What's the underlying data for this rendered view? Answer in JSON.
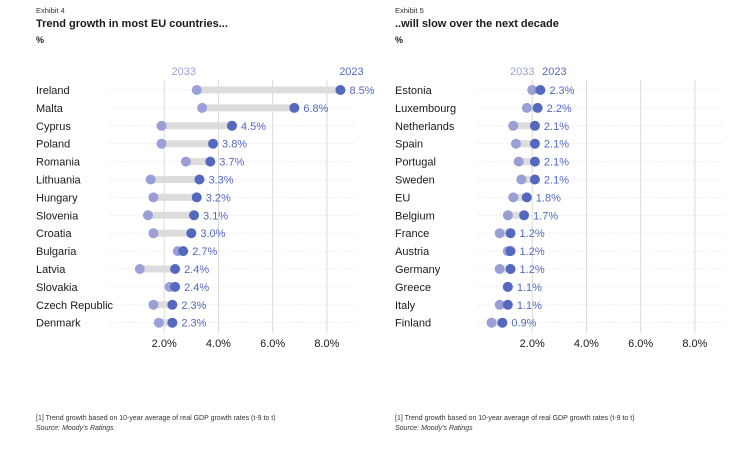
{
  "left": {
    "exhibit": "Exhibit 4",
    "title": "Trend growth in most EU countries...",
    "unit": "%",
    "footnote": "[1] Trend growth based on 10-year average of real GDP growth rates (t-9 to t)",
    "source": "Source: Moody’s Ratings"
  },
  "right": {
    "exhibit": "Exhibit 5",
    "title": "..will slow over the next decade",
    "unit": "%",
    "footnote": "[1] Trend growth based on 10-year average of real GDP growth rates (t-9 to t)",
    "source": "Source: Moody’s Ratings"
  },
  "colors": {
    "series_2023": "#5468c0",
    "series_2033": "#9a9fd6",
    "connector": "#dcdcdc",
    "grid": "#d9d9d9"
  },
  "chart_data": [
    {
      "type": "dumbbell",
      "title": "Trend growth in most EU countries...",
      "ylabel": "%",
      "xlim": [
        0,
        0.09
      ],
      "xticks": [
        0.02,
        0.04,
        0.06,
        0.08
      ],
      "xtick_labels": [
        "2.0%",
        "4.0%",
        "6.0%",
        "8.0%"
      ],
      "grid": true,
      "series": [
        {
          "name": "2023",
          "values": [
            0.085,
            0.068,
            0.045,
            0.038,
            0.037,
            0.033,
            0.032,
            0.031,
            0.03,
            0.027,
            0.024,
            0.024,
            0.023,
            0.023
          ],
          "labels": [
            "8.5%",
            "6.8%",
            "4.5%",
            "3.8%",
            "3.7%",
            "3.3%",
            "3.2%",
            "3.1%",
            "3.0%",
            "2.7%",
            "2.4%",
            "2.4%",
            "2.3%",
            "2.3%"
          ]
        },
        {
          "name": "2033",
          "values": [
            0.032,
            0.034,
            0.019,
            0.019,
            0.028,
            0.015,
            0.016,
            0.014,
            0.016,
            0.025,
            0.011,
            0.022,
            0.016,
            0.018
          ]
        }
      ],
      "categories": [
        "Ireland",
        "Malta",
        "Cyprus",
        "Poland",
        "Romania",
        "Lithuania",
        "Hungary",
        "Slovenia",
        "Croatia",
        "Bulgaria",
        "Latvia",
        "Slovakia",
        "Czech Republic",
        "Denmark"
      ]
    },
    {
      "type": "dumbbell",
      "title": "..will slow over the next decade",
      "ylabel": "%",
      "xlim": [
        0,
        0.09
      ],
      "xticks": [
        0.02,
        0.04,
        0.06,
        0.08
      ],
      "xtick_labels": [
        "2.0%",
        "4.0%",
        "6.0%",
        "8.0%"
      ],
      "grid": true,
      "series": [
        {
          "name": "2023",
          "values": [
            0.023,
            0.022,
            0.021,
            0.021,
            0.021,
            0.021,
            0.018,
            0.017,
            0.012,
            0.012,
            0.012,
            0.011,
            0.011,
            0.009
          ],
          "labels": [
            "2.3%",
            "2.2%",
            "2.1%",
            "2.1%",
            "2.1%",
            "2.1%",
            "1.8%",
            "1.7%",
            "1.2%",
            "1.2%",
            "1.2%",
            "1.1%",
            "1.1%",
            "0.9%"
          ]
        },
        {
          "name": "2033",
          "values": [
            0.02,
            0.018,
            0.013,
            0.014,
            0.015,
            0.016,
            0.013,
            0.011,
            0.008,
            0.011,
            0.008,
            0.011,
            0.008,
            0.005
          ]
        }
      ],
      "categories": [
        "Estonia",
        "Luxembourg",
        "Netherlands",
        "Spain",
        "Portugal",
        "Sweden",
        "EU",
        "Belgium",
        "France",
        "Austria",
        "Germany",
        "Greece",
        "Italy",
        "Finland"
      ]
    }
  ]
}
